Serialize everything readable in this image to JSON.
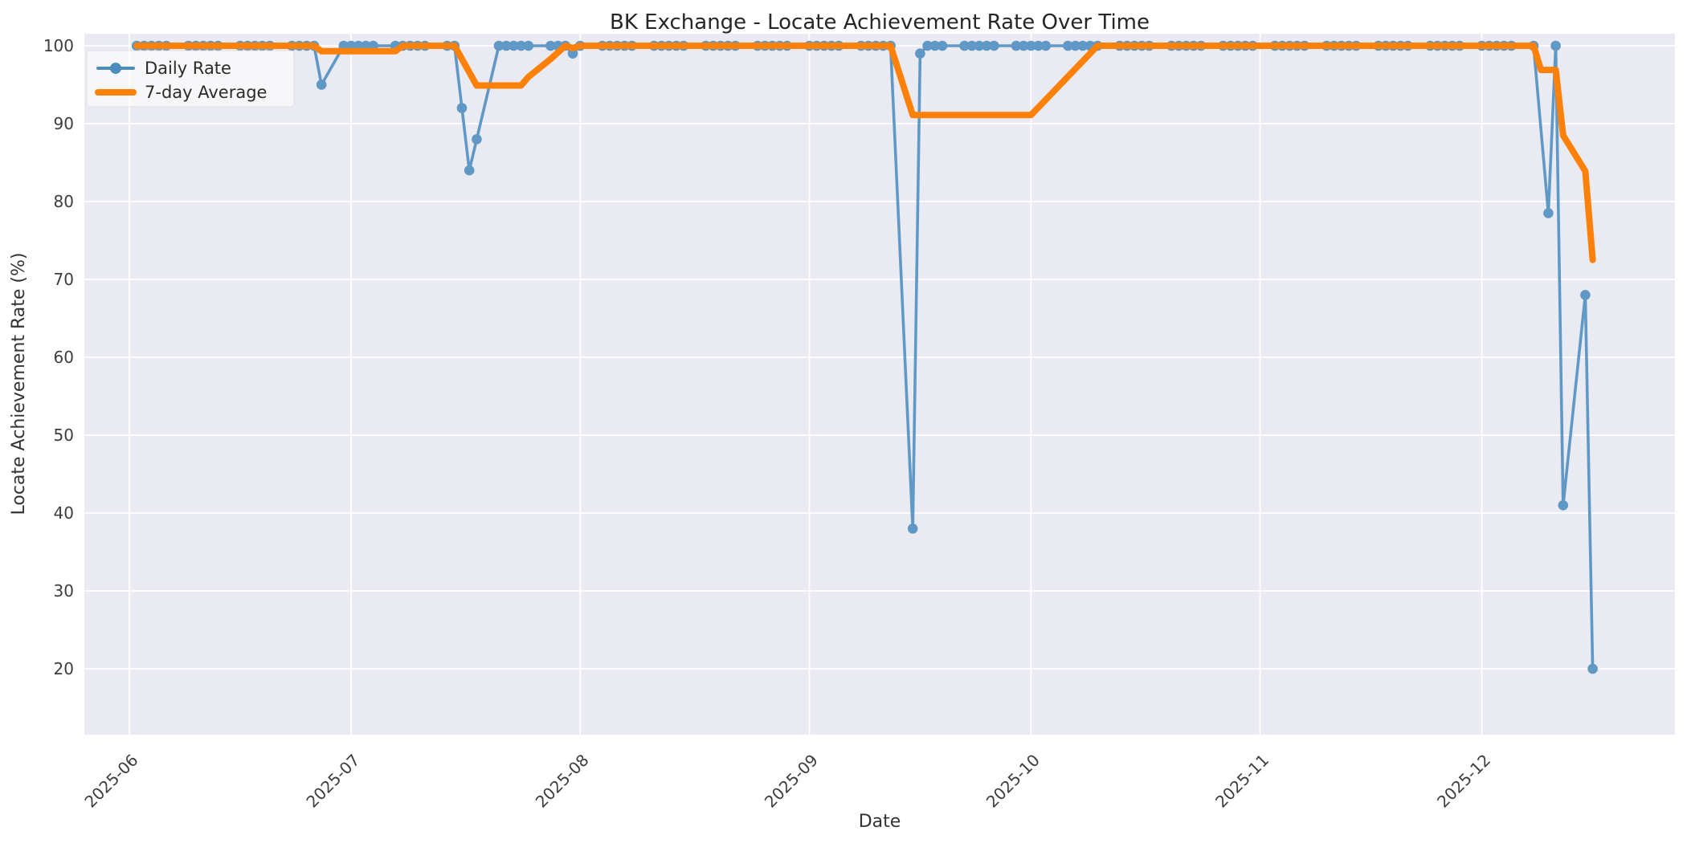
{
  "chart_data": {
    "type": "line",
    "title": "BK Exchange - Locate Achievement Rate Over Time",
    "xlabel": "Date",
    "ylabel": "Locate Achievement Rate (%)",
    "ylim": [
      11.5,
      101.5
    ],
    "yticks": [
      20,
      30,
      40,
      50,
      60,
      70,
      80,
      90,
      100
    ],
    "xticks": [
      {
        "label": "2025-06",
        "date": "2025-06-01"
      },
      {
        "label": "2025-07",
        "date": "2025-07-01"
      },
      {
        "label": "2025-08",
        "date": "2025-08-01"
      },
      {
        "label": "2025-09",
        "date": "2025-09-01"
      },
      {
        "label": "2025-10",
        "date": "2025-10-01"
      },
      {
        "label": "2025-11",
        "date": "2025-11-01"
      },
      {
        "label": "2025-12",
        "date": "2025-12-01"
      }
    ],
    "grid": true,
    "legend_position": "upper left",
    "colors": {
      "plot_background": "#eaeaf2",
      "grid": "#ffffff",
      "daily_rate": "#4c8dbf",
      "seven_day_average": "#fd8008",
      "text": "#3a3a3a"
    },
    "legend": {
      "items": [
        {
          "label": "Daily Rate",
          "series": "daily_rate",
          "type": "line-marker"
        },
        {
          "label": "7-day Average",
          "series": "seven_day_average",
          "type": "line"
        }
      ]
    },
    "series": [
      {
        "name": "Daily Rate",
        "key": "daily_rate",
        "marker": true,
        "points": [
          [
            "2025-06-02",
            100
          ],
          [
            "2025-06-03",
            100
          ],
          [
            "2025-06-04",
            100
          ],
          [
            "2025-06-05",
            100
          ],
          [
            "2025-06-06",
            100
          ],
          [
            "2025-06-09",
            100
          ],
          [
            "2025-06-10",
            100
          ],
          [
            "2025-06-11",
            100
          ],
          [
            "2025-06-12",
            100
          ],
          [
            "2025-06-13",
            100
          ],
          [
            "2025-06-16",
            100
          ],
          [
            "2025-06-17",
            100
          ],
          [
            "2025-06-18",
            100
          ],
          [
            "2025-06-19",
            100
          ],
          [
            "2025-06-20",
            100
          ],
          [
            "2025-06-23",
            100
          ],
          [
            "2025-06-24",
            100
          ],
          [
            "2025-06-25",
            100
          ],
          [
            "2025-06-26",
            100
          ],
          [
            "2025-06-27",
            95
          ],
          [
            "2025-06-30",
            100
          ],
          [
            "2025-07-01",
            100
          ],
          [
            "2025-07-02",
            100
          ],
          [
            "2025-07-03",
            100
          ],
          [
            "2025-07-04",
            100
          ],
          [
            "2025-07-07",
            100
          ],
          [
            "2025-07-08",
            100
          ],
          [
            "2025-07-09",
            100
          ],
          [
            "2025-07-10",
            100
          ],
          [
            "2025-07-11",
            100
          ],
          [
            "2025-07-14",
            100
          ],
          [
            "2025-07-15",
            100
          ],
          [
            "2025-07-16",
            92
          ],
          [
            "2025-07-17",
            84
          ],
          [
            "2025-07-18",
            88
          ],
          [
            "2025-07-21",
            100
          ],
          [
            "2025-07-22",
            100
          ],
          [
            "2025-07-23",
            100
          ],
          [
            "2025-07-24",
            100
          ],
          [
            "2025-07-25",
            100
          ],
          [
            "2025-07-28",
            100
          ],
          [
            "2025-07-29",
            100
          ],
          [
            "2025-07-30",
            100
          ],
          [
            "2025-07-31",
            99
          ],
          [
            "2025-08-01",
            100
          ],
          [
            "2025-08-04",
            100
          ],
          [
            "2025-08-05",
            100
          ],
          [
            "2025-08-06",
            100
          ],
          [
            "2025-08-07",
            100
          ],
          [
            "2025-08-08",
            100
          ],
          [
            "2025-08-11",
            100
          ],
          [
            "2025-08-12",
            100
          ],
          [
            "2025-08-13",
            100
          ],
          [
            "2025-08-14",
            100
          ],
          [
            "2025-08-15",
            100
          ],
          [
            "2025-08-18",
            100
          ],
          [
            "2025-08-19",
            100
          ],
          [
            "2025-08-20",
            100
          ],
          [
            "2025-08-21",
            100
          ],
          [
            "2025-08-22",
            100
          ],
          [
            "2025-08-25",
            100
          ],
          [
            "2025-08-26",
            100
          ],
          [
            "2025-08-27",
            100
          ],
          [
            "2025-08-28",
            100
          ],
          [
            "2025-08-29",
            100
          ],
          [
            "2025-09-01",
            100
          ],
          [
            "2025-09-02",
            100
          ],
          [
            "2025-09-03",
            100
          ],
          [
            "2025-09-04",
            100
          ],
          [
            "2025-09-05",
            100
          ],
          [
            "2025-09-08",
            100
          ],
          [
            "2025-09-09",
            100
          ],
          [
            "2025-09-10",
            100
          ],
          [
            "2025-09-11",
            100
          ],
          [
            "2025-09-12",
            100
          ],
          [
            "2025-09-15",
            38
          ],
          [
            "2025-09-16",
            99
          ],
          [
            "2025-09-17",
            100
          ],
          [
            "2025-09-18",
            100
          ],
          [
            "2025-09-19",
            100
          ],
          [
            "2025-09-22",
            100
          ],
          [
            "2025-09-23",
            100
          ],
          [
            "2025-09-24",
            100
          ],
          [
            "2025-09-25",
            100
          ],
          [
            "2025-09-26",
            100
          ],
          [
            "2025-09-29",
            100
          ],
          [
            "2025-09-30",
            100
          ],
          [
            "2025-10-01",
            100
          ],
          [
            "2025-10-02",
            100
          ],
          [
            "2025-10-03",
            100
          ],
          [
            "2025-10-06",
            100
          ],
          [
            "2025-10-07",
            100
          ],
          [
            "2025-10-08",
            100
          ],
          [
            "2025-10-09",
            100
          ],
          [
            "2025-10-10",
            100
          ],
          [
            "2025-10-13",
            100
          ],
          [
            "2025-10-14",
            100
          ],
          [
            "2025-10-15",
            100
          ],
          [
            "2025-10-16",
            100
          ],
          [
            "2025-10-17",
            100
          ],
          [
            "2025-10-20",
            100
          ],
          [
            "2025-10-21",
            100
          ],
          [
            "2025-10-22",
            100
          ],
          [
            "2025-10-23",
            100
          ],
          [
            "2025-10-24",
            100
          ],
          [
            "2025-10-27",
            100
          ],
          [
            "2025-10-28",
            100
          ],
          [
            "2025-10-29",
            100
          ],
          [
            "2025-10-30",
            100
          ],
          [
            "2025-10-31",
            100
          ],
          [
            "2025-11-03",
            100
          ],
          [
            "2025-11-04",
            100
          ],
          [
            "2025-11-05",
            100
          ],
          [
            "2025-11-06",
            100
          ],
          [
            "2025-11-07",
            100
          ],
          [
            "2025-11-10",
            100
          ],
          [
            "2025-11-11",
            100
          ],
          [
            "2025-11-12",
            100
          ],
          [
            "2025-11-13",
            100
          ],
          [
            "2025-11-14",
            100
          ],
          [
            "2025-11-17",
            100
          ],
          [
            "2025-11-18",
            100
          ],
          [
            "2025-11-19",
            100
          ],
          [
            "2025-11-20",
            100
          ],
          [
            "2025-11-21",
            100
          ],
          [
            "2025-11-24",
            100
          ],
          [
            "2025-11-25",
            100
          ],
          [
            "2025-11-26",
            100
          ],
          [
            "2025-11-27",
            100
          ],
          [
            "2025-11-28",
            100
          ],
          [
            "2025-12-01",
            100
          ],
          [
            "2025-12-02",
            100
          ],
          [
            "2025-12-03",
            100
          ],
          [
            "2025-12-04",
            100
          ],
          [
            "2025-12-05",
            100
          ],
          [
            "2025-12-08",
            100
          ],
          [
            "2025-12-10",
            78.5
          ],
          [
            "2025-12-11",
            100
          ],
          [
            "2025-12-12",
            41
          ],
          [
            "2025-12-15",
            68
          ],
          [
            "2025-12-16",
            20
          ]
        ]
      },
      {
        "name": "7-day Average",
        "key": "seven_day_average",
        "marker": false,
        "points": [
          [
            "2025-06-02",
            100
          ],
          [
            "2025-06-26",
            100
          ],
          [
            "2025-06-27",
            99.3
          ],
          [
            "2025-07-07",
            99.3
          ],
          [
            "2025-07-08",
            100
          ],
          [
            "2025-07-15",
            100
          ],
          [
            "2025-07-18",
            94.9
          ],
          [
            "2025-07-24",
            94.9
          ],
          [
            "2025-07-25",
            96
          ],
          [
            "2025-07-28",
            98.3
          ],
          [
            "2025-07-30",
            100
          ],
          [
            "2025-07-31",
            99.7
          ],
          [
            "2025-08-01",
            100
          ],
          [
            "2025-09-12",
            100
          ],
          [
            "2025-09-15",
            91.1
          ],
          [
            "2025-10-01",
            91.1
          ],
          [
            "2025-10-10",
            100
          ],
          [
            "2025-12-08",
            100
          ],
          [
            "2025-12-09",
            96.9
          ],
          [
            "2025-12-11",
            96.9
          ],
          [
            "2025-12-12",
            88.5
          ],
          [
            "2025-12-15",
            83.9
          ],
          [
            "2025-12-16",
            72.5
          ]
        ]
      }
    ]
  }
}
